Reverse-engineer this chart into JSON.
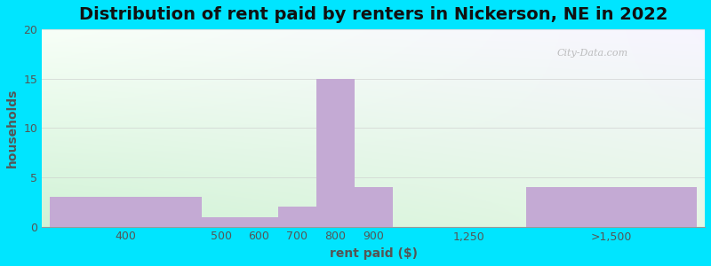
{
  "title": "Distribution of rent paid by renters in Nickerson, NE in 2022",
  "xlabel": "rent paid ($)",
  "ylabel": "households",
  "bar_color": "#c4aad4",
  "outer_background": "#00e5ff",
  "ylim": [
    0,
    20
  ],
  "yticks": [
    0,
    5,
    10,
    15,
    20
  ],
  "bar_labels": [
    "400",
    "500",
    "600",
    "700",
    "800",
    "900",
    "1,250",
    ">1,500"
  ],
  "bar_values": [
    3,
    1,
    1,
    2,
    15,
    4,
    0,
    4
  ],
  "bar_left": [
    0.0,
    2.0,
    2.5,
    3.0,
    3.5,
    4.0,
    4.75,
    6.25
  ],
  "bar_right": [
    2.0,
    2.5,
    3.0,
    3.5,
    4.0,
    4.5,
    6.25,
    8.5
  ],
  "tick_positions": [
    1.0,
    2.25,
    2.75,
    3.25,
    3.75,
    4.25,
    5.5,
    7.375
  ],
  "xlim": [
    -0.1,
    8.6
  ],
  "title_fontsize": 14,
  "label_fontsize": 10,
  "tick_fontsize": 9,
  "watermark_text": "© City-Data.com",
  "grid_color": "#cccccc",
  "grid_alpha": 0.6
}
